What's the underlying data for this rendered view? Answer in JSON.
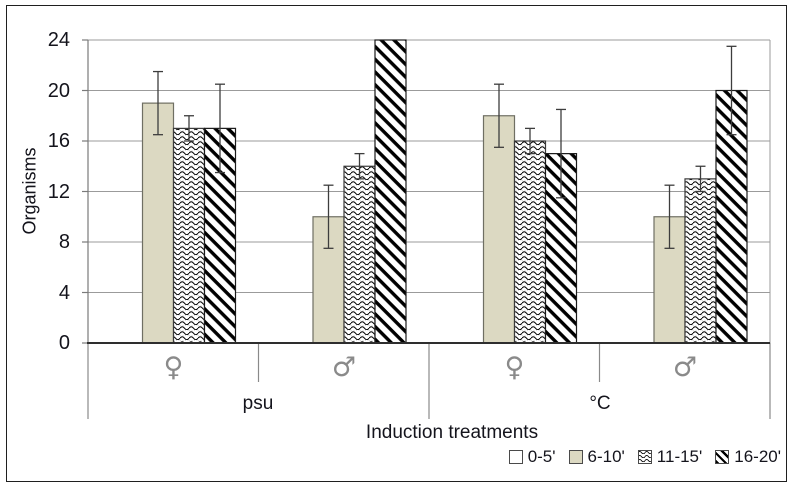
{
  "chart_data": {
    "type": "bar",
    "title": "",
    "ylabel": "Organisms",
    "xlabel": "Induction treatments",
    "ylim": [
      0,
      24
    ],
    "yticks": [
      0,
      4,
      8,
      12,
      16,
      20,
      24
    ],
    "grid": true,
    "legend_position": "bottom-right",
    "groups": [
      {
        "label": "psu",
        "categories": [
          "♀",
          "♂"
        ]
      },
      {
        "label": "°C",
        "categories": [
          "♀",
          "♂"
        ]
      }
    ],
    "categories": [
      "psu ♀",
      "psu ♂",
      "°C ♀",
      "°C ♂"
    ],
    "series": [
      {
        "name": "0-5'",
        "pattern": "white-empty",
        "values": [
          0,
          0,
          0,
          0
        ],
        "errors": [
          null,
          null,
          null,
          null
        ]
      },
      {
        "name": "6-10'",
        "pattern": "tan-solid",
        "values": [
          19,
          10,
          18,
          10
        ],
        "errors": [
          2.5,
          2.5,
          2.5,
          2.5
        ]
      },
      {
        "name": "11-15'",
        "pattern": "wavy",
        "values": [
          17,
          14,
          16,
          13
        ],
        "errors": [
          1,
          1,
          1,
          1
        ]
      },
      {
        "name": "16-20'",
        "pattern": "diagonal-lines",
        "values": [
          17,
          24,
          15,
          20
        ],
        "errors": [
          3.5,
          null,
          3.5,
          3.5
        ]
      }
    ],
    "colors": {
      "tan_fill": "#dcd9c2",
      "gridline": "#9b9b9b",
      "axis": "#2e2e2e",
      "error_bar": "#3d3d3d",
      "sex_symbol": "#8a8a8a"
    }
  }
}
